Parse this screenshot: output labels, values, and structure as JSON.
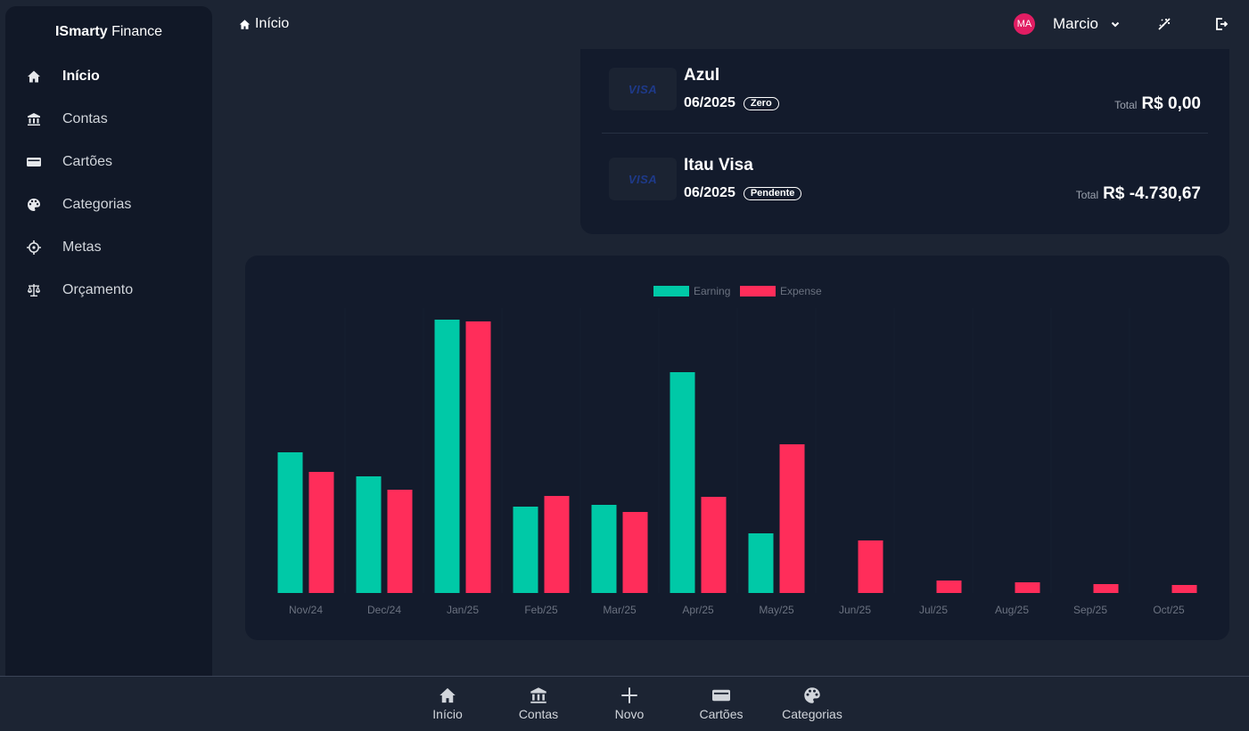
{
  "brand": {
    "bold": "ISmarty",
    "rest": " Finance"
  },
  "sidebar": {
    "items": [
      {
        "label": "Início",
        "icon": "home-icon",
        "active": true
      },
      {
        "label": "Contas",
        "icon": "bank-icon"
      },
      {
        "label": "Cartões",
        "icon": "credit-card-icon"
      },
      {
        "label": "Categorias",
        "icon": "palette-icon"
      },
      {
        "label": "Metas",
        "icon": "target-icon"
      },
      {
        "label": "Orçamento",
        "icon": "scale-icon"
      }
    ]
  },
  "header": {
    "breadcrumb": "Início",
    "avatar_initials": "MA",
    "user_name": "Marcio"
  },
  "cards": [
    {
      "brand": "VISA",
      "name": "Azul",
      "period": "06/2025",
      "status": "Zero",
      "total_label": "Total",
      "total": "R$ 0,00"
    },
    {
      "brand": "VISA",
      "name": "Itau Visa",
      "period": "06/2025",
      "status": "Pendente",
      "total_label": "Total",
      "total": "R$ -4.730,67"
    }
  ],
  "chart_data": {
    "type": "bar",
    "categories": [
      "Nov/24",
      "Dec/24",
      "Jan/25",
      "Feb/25",
      "Mar/25",
      "Apr/25",
      "May/25",
      "Jun/25",
      "Jul/25",
      "Aug/25",
      "Sep/25",
      "Oct/25"
    ],
    "series": [
      {
        "name": "Earning",
        "color": "#00c9a7",
        "values": [
          158,
          131,
          307,
          97,
          99,
          248,
          67,
          0,
          0,
          0,
          0,
          0
        ]
      },
      {
        "name": "Expense",
        "color": "#ff2d5a",
        "values": [
          136,
          116,
          305,
          109,
          91,
          108,
          167,
          59,
          14,
          12,
          10,
          9
        ]
      }
    ],
    "legend_position": "top-center",
    "grid": false,
    "ylim": [
      0,
      320
    ]
  },
  "bottom_nav": {
    "items": [
      {
        "label": "Início",
        "icon": "home-icon"
      },
      {
        "label": "Contas",
        "icon": "bank-icon"
      },
      {
        "label": "Novo",
        "icon": "plus-icon"
      },
      {
        "label": "Cartões",
        "icon": "credit-card-icon"
      },
      {
        "label": "Categorias",
        "icon": "palette-icon"
      }
    ]
  }
}
